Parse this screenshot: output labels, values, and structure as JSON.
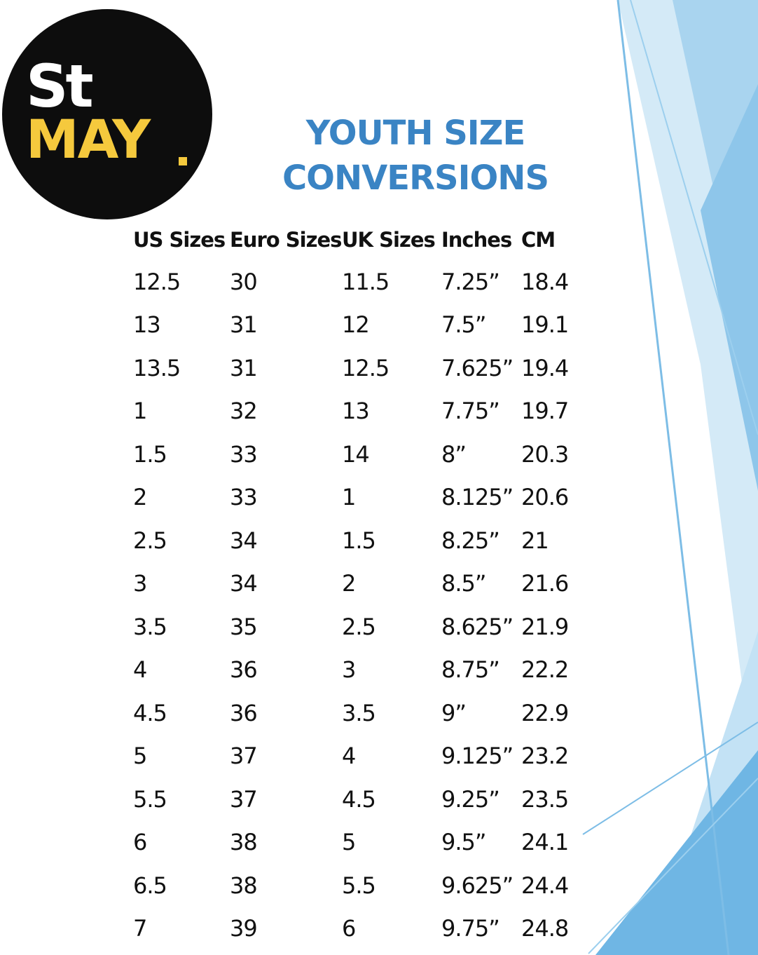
{
  "logo": {
    "line1": "St",
    "line2": "MAY"
  },
  "title": {
    "line1": "YOUTH SIZE",
    "line2": "CONVERSIONS"
  },
  "table": {
    "headers": [
      "US Sizes",
      "Euro Sizes",
      "UK Sizes",
      "Inches",
      "CM"
    ],
    "rows": [
      [
        "12.5",
        "30",
        "11.5",
        "7.25”",
        "18.4"
      ],
      [
        "13",
        "31",
        "12",
        "7.5”",
        "19.1"
      ],
      [
        "13.5",
        "31",
        "12.5",
        "7.625”",
        "19.4"
      ],
      [
        "1",
        "32",
        "13",
        "7.75”",
        "19.7"
      ],
      [
        "1.5",
        "33",
        "14",
        "8”",
        "20.3"
      ],
      [
        "2",
        "33",
        "1",
        "8.125”",
        "20.6"
      ],
      [
        "2.5",
        "34",
        "1.5",
        "8.25”",
        "21"
      ],
      [
        "3",
        "34",
        "2",
        "8.5”",
        "21.6"
      ],
      [
        "3.5",
        "35",
        "2.5",
        "8.625”",
        "21.9"
      ],
      [
        "4",
        "36",
        "3",
        "8.75”",
        "22.2"
      ],
      [
        "4.5",
        "36",
        "3.5",
        "9”",
        "22.9"
      ],
      [
        "5",
        "37",
        "4",
        "9.125”",
        "23.2"
      ],
      [
        "5.5",
        "37",
        "4.5",
        "9.25”",
        "23.5"
      ],
      [
        "6",
        "38",
        "5",
        "9.5”",
        "24.1"
      ],
      [
        "6.5",
        "38",
        "5.5",
        "9.625”",
        "24.4"
      ],
      [
        "7",
        "39",
        "6",
        "9.75”",
        "24.8"
      ]
    ]
  },
  "colors": {
    "title": "#3a84c4",
    "logo_background": "#0d0d0d",
    "logo_accent": "#f5c93d",
    "decor_light": "#d4eaf7",
    "decor_mid": "#a9d4ef",
    "decor_dark": "#6fb6e4"
  }
}
